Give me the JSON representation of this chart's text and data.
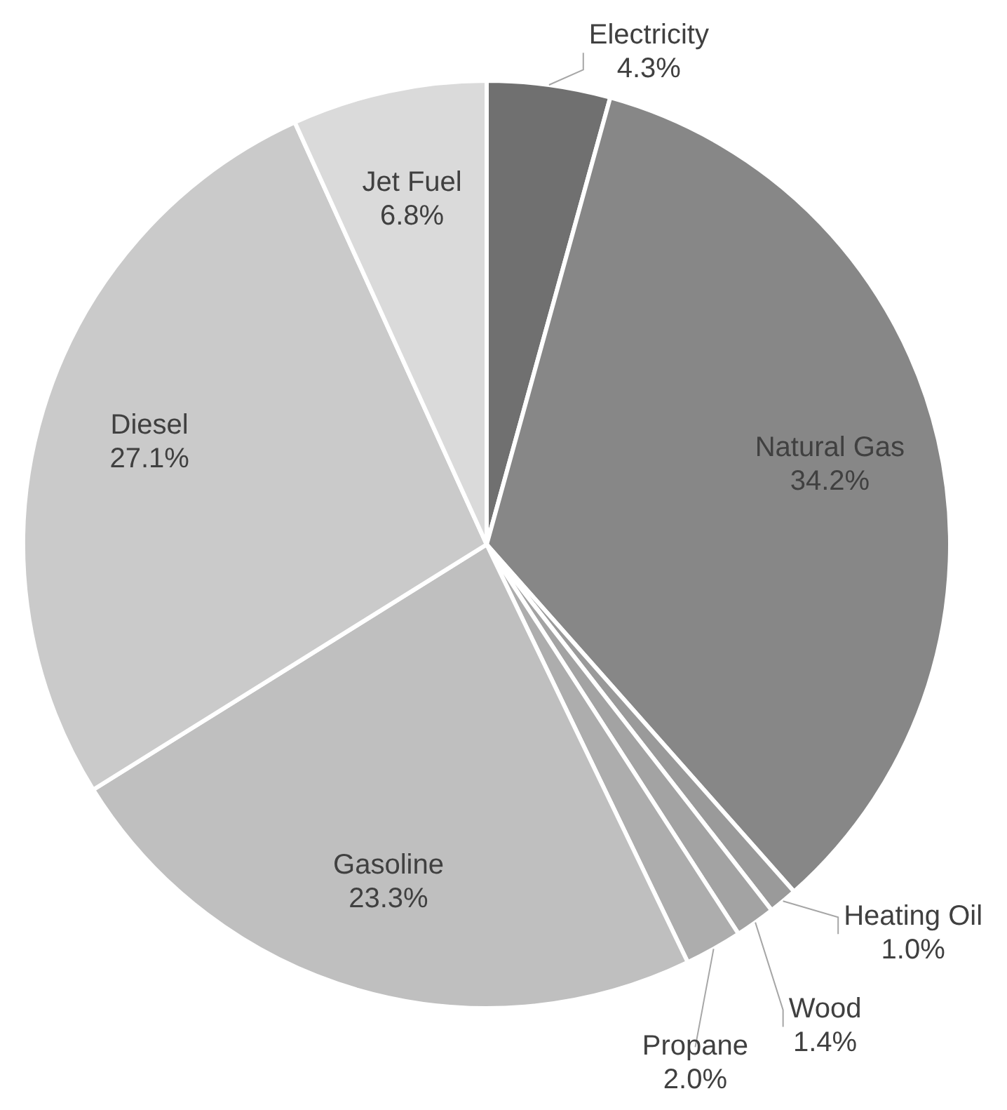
{
  "chart_data": {
    "type": "pie",
    "categories": [
      "Electricity",
      "Natural Gas",
      "Heating Oil",
      "Wood",
      "Propane",
      "Gasoline",
      "Diesel",
      "Jet Fuel"
    ],
    "values": [
      4.3,
      34.2,
      1.0,
      1.4,
      2.0,
      23.3,
      27.1,
      6.8
    ],
    "colors": [
      "#707070",
      "#878787",
      "#9a9a9a",
      "#a3a3a3",
      "#adadad",
      "#bfbfbf",
      "#cacaca",
      "#dadada"
    ],
    "value_labels": [
      "4.3%",
      "34.2%",
      "1.0%",
      "1.4%",
      "2.0%",
      "23.3%",
      "27.1%",
      "6.8%"
    ],
    "legend": false
  }
}
